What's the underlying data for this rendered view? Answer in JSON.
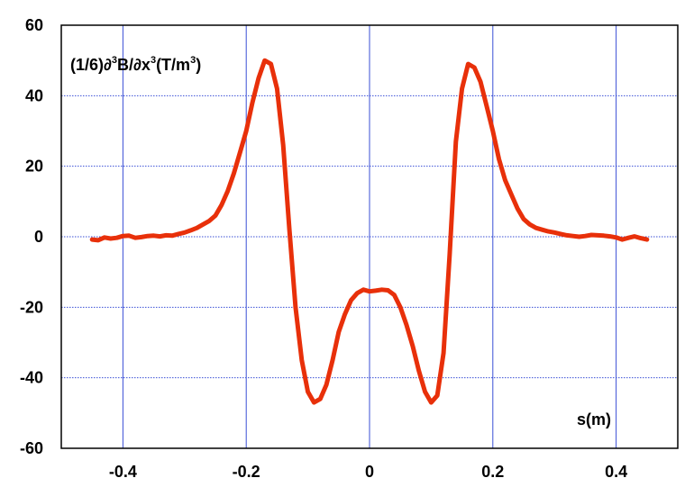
{
  "chart_data": {
    "type": "line",
    "title": "",
    "ylabel": {
      "prefix": "(1/6)∂",
      "sup1": "3",
      "mid": "B/∂x",
      "sup2": "3",
      "unit_pre": "(T/m",
      "sup3": "3",
      "unit_post": ")"
    },
    "xlabel": "s(m)",
    "xlim": [
      -0.5,
      0.5
    ],
    "ylim": [
      -60,
      60
    ],
    "x_ticks": [
      -0.4,
      -0.2,
      0,
      0.2,
      0.4
    ],
    "x_tick_labels": [
      "-0.4",
      "-0.2",
      "0",
      "0.2",
      "0.4"
    ],
    "y_ticks": [
      -60,
      -40,
      -20,
      0,
      20,
      40,
      60
    ],
    "y_tick_labels": [
      "-60",
      "-40",
      "-20",
      "0",
      "20",
      "40",
      "60"
    ],
    "grid": true,
    "line_color": "#e8300a",
    "grid_color": "#3a4fd6",
    "series": [
      {
        "x": [
          -0.45,
          -0.44,
          -0.43,
          -0.42,
          -0.41,
          -0.4,
          -0.39,
          -0.38,
          -0.37,
          -0.36,
          -0.35,
          -0.34,
          -0.33,
          -0.32,
          -0.31,
          -0.3,
          -0.29,
          -0.28,
          -0.27,
          -0.26,
          -0.25,
          -0.24,
          -0.23,
          -0.22,
          -0.21,
          -0.2,
          -0.19,
          -0.18,
          -0.17,
          -0.16,
          -0.15,
          -0.14,
          -0.13,
          -0.12,
          -0.11,
          -0.1,
          -0.09,
          -0.08,
          -0.07,
          -0.06,
          -0.05,
          -0.04,
          -0.03,
          -0.02,
          -0.01,
          0.0,
          0.01,
          0.02,
          0.03,
          0.04,
          0.05,
          0.06,
          0.07,
          0.08,
          0.09,
          0.1,
          0.11,
          0.12,
          0.13,
          0.14,
          0.15,
          0.16,
          0.17,
          0.18,
          0.19,
          0.2,
          0.21,
          0.22,
          0.23,
          0.24,
          0.25,
          0.26,
          0.27,
          0.28,
          0.29,
          0.3,
          0.31,
          0.32,
          0.33,
          0.34,
          0.35,
          0.36,
          0.37,
          0.38,
          0.39,
          0.4,
          0.41,
          0.42,
          0.43,
          0.44,
          0.45
        ],
        "y": [
          -0.8,
          -1,
          -0.2,
          -0.5,
          -0.3,
          0.2,
          0.3,
          -0.3,
          -0.1,
          0.2,
          0.3,
          0.1,
          0.4,
          0.3,
          0.8,
          1.2,
          1.8,
          2.5,
          3.5,
          4.5,
          6,
          9,
          13,
          18,
          24,
          30,
          38,
          45,
          50,
          49,
          42,
          26,
          2,
          -20,
          -35,
          -44,
          -47,
          -46,
          -42,
          -35,
          -27,
          -22,
          -18,
          -16,
          -15,
          -15.5,
          -15.3,
          -15,
          -15.2,
          -16.5,
          -20,
          -25,
          -31,
          -38,
          -44,
          -47,
          -45,
          -33,
          -5,
          27,
          42,
          49,
          48,
          44,
          37,
          30,
          22,
          16,
          12,
          8,
          5,
          3.5,
          2.5,
          2,
          1.5,
          1.2,
          0.8,
          0.4,
          0.2,
          0,
          0.2,
          0.5,
          0.4,
          0.3,
          0.1,
          -0.2,
          -0.8,
          -0.3,
          0.1,
          -0.4,
          -0.8
        ]
      }
    ]
  }
}
